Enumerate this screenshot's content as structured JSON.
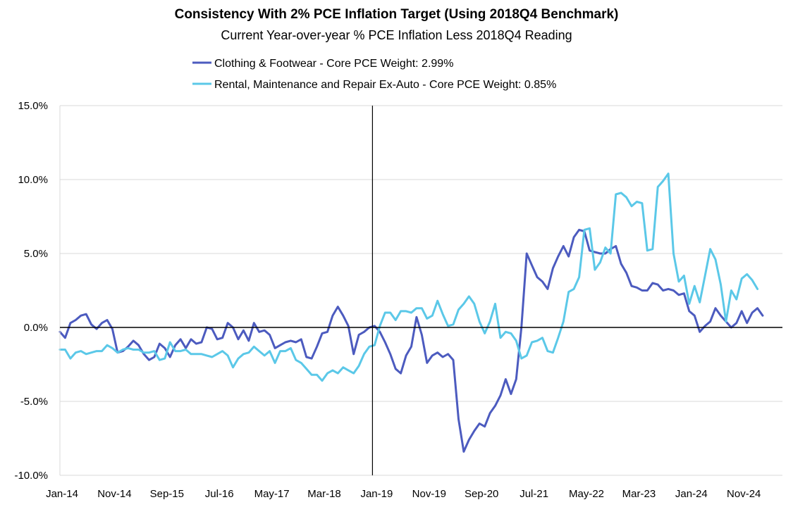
{
  "chart_data": {
    "type": "line",
    "title": "Consistency With 2% PCE Inflation Target (Using 2018Q4 Benchmark)",
    "subtitle": "Current Year-over-year % PCE Inflation Less 2018Q4 Reading",
    "ylim": [
      -10,
      15
    ],
    "y_ticks": [
      "15.0%",
      "10.0%",
      "5.0%",
      "0.0%",
      "-5.0%",
      "-10.0%"
    ],
    "x_ticks": [
      "Jan-14",
      "Nov-14",
      "Sep-15",
      "Jul-16",
      "May-17",
      "Mar-18",
      "Jan-19",
      "Nov-19",
      "Sep-20",
      "Jul-21",
      "May-22",
      "Mar-23",
      "Jan-24",
      "Nov-24"
    ],
    "reference_line": "Jan-19",
    "grid": "horizontal",
    "legend_position": "top",
    "series": [
      {
        "name": "Clothing & Footwear - Core PCE Weight: 2.99%",
        "color": "#4C5BBF",
        "values": [
          -0.3,
          -0.7,
          0.3,
          0.5,
          0.8,
          0.9,
          0.2,
          -0.1,
          0.3,
          0.5,
          -0.1,
          -1.7,
          -1.6,
          -1.3,
          -0.9,
          -1.2,
          -1.8,
          -2.2,
          -2.0,
          -1.1,
          -1.4,
          -2.0,
          -1.2,
          -0.8,
          -1.4,
          -0.8,
          -1.1,
          -1.0,
          0.0,
          -0.1,
          -0.8,
          -0.7,
          0.3,
          0.0,
          -0.8,
          -0.2,
          -0.9,
          0.3,
          -0.3,
          -0.2,
          -0.5,
          -1.4,
          -1.2,
          -1.0,
          -0.9,
          -1.0,
          -0.8,
          -2.0,
          -2.1,
          -1.3,
          -0.4,
          -0.3,
          0.8,
          1.4,
          0.8,
          0.1,
          -1.8,
          -0.5,
          -0.3,
          0.0,
          0.1,
          -0.3,
          -1.0,
          -1.8,
          -2.8,
          -3.1,
          -1.9,
          -1.3,
          0.7,
          -0.5,
          -2.4,
          -1.9,
          -1.7,
          -2.0,
          -1.8,
          -2.2,
          -6.2,
          -8.4,
          -7.6,
          -7.0,
          -6.5,
          -6.7,
          -5.8,
          -5.3,
          -4.6,
          -3.5,
          -4.5,
          -3.5,
          0.0,
          5.0,
          4.2,
          3.4,
          3.1,
          2.6,
          4.0,
          4.8,
          5.5,
          4.8,
          6.1,
          6.6,
          6.5,
          5.2,
          5.1,
          5.0,
          5.0,
          5.3,
          5.5,
          4.3,
          3.7,
          2.8,
          2.7,
          2.5,
          2.5,
          3.0,
          2.9,
          2.5,
          2.6,
          2.5,
          2.2,
          2.3,
          1.1,
          0.8,
          -0.3,
          0.1,
          0.4,
          1.3,
          0.8,
          0.4,
          0.0,
          0.3,
          1.1,
          0.3,
          1.0,
          1.3,
          0.8
        ]
      },
      {
        "name": "Rental, Maintenance and Repair Ex-Auto - Core PCE Weight: 0.85%",
        "color": "#5BC8E8",
        "values": [
          -1.5,
          -1.5,
          -2.1,
          -1.7,
          -1.6,
          -1.8,
          -1.7,
          -1.6,
          -1.6,
          -1.2,
          -1.4,
          -1.7,
          -1.5,
          -1.4,
          -1.5,
          -1.5,
          -1.7,
          -1.7,
          -1.6,
          -2.2,
          -2.1,
          -1.0,
          -1.6,
          -1.6,
          -1.5,
          -1.8,
          -1.8,
          -1.8,
          -1.9,
          -2.0,
          -1.8,
          -1.6,
          -1.9,
          -2.7,
          -2.1,
          -1.8,
          -1.7,
          -1.3,
          -1.6,
          -1.9,
          -1.6,
          -2.4,
          -1.6,
          -1.6,
          -1.4,
          -2.2,
          -2.4,
          -2.8,
          -3.2,
          -3.2,
          -3.6,
          -3.1,
          -2.9,
          -3.1,
          -2.7,
          -2.9,
          -3.1,
          -2.6,
          -1.8,
          -1.3,
          -1.2,
          0.1,
          1.0,
          1.0,
          0.5,
          1.1,
          1.1,
          1.0,
          1.3,
          1.3,
          0.6,
          0.8,
          1.8,
          0.9,
          0.1,
          0.2,
          1.2,
          1.6,
          2.1,
          1.6,
          0.4,
          -0.4,
          0.4,
          1.6,
          -0.7,
          -0.3,
          -0.4,
          -0.9,
          -2.1,
          -1.9,
          -1.0,
          -0.9,
          -0.7,
          -1.6,
          -1.7,
          -0.7,
          0.4,
          2.4,
          2.6,
          3.4,
          6.6,
          6.7,
          3.9,
          4.4,
          5.4,
          5.0,
          9.0,
          9.1,
          8.8,
          8.2,
          8.5,
          8.4,
          5.2,
          5.3,
          9.5,
          9.9,
          10.4,
          5.0,
          3.1,
          3.5,
          1.6,
          2.8,
          1.7,
          3.5,
          5.3,
          4.6,
          2.9,
          0.4,
          2.5,
          1.9,
          3.3,
          3.6,
          3.2,
          2.6
        ]
      }
    ]
  }
}
